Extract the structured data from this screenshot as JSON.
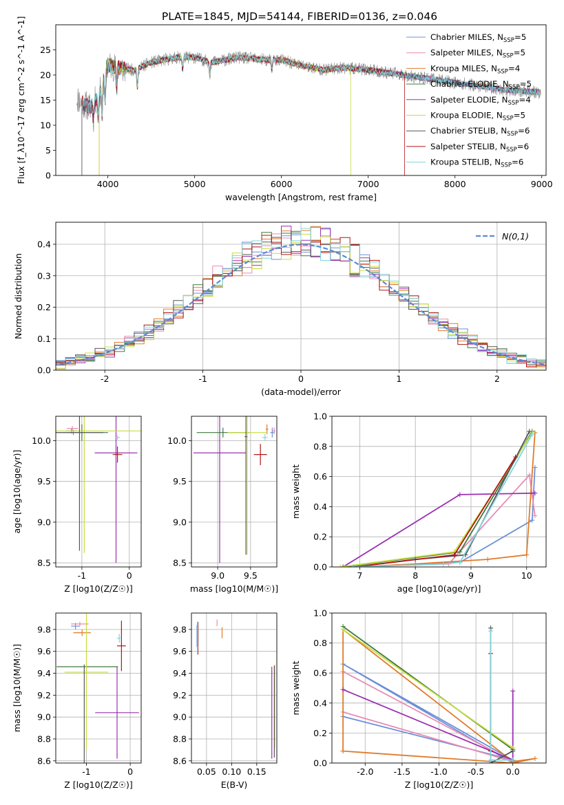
{
  "figure": {
    "title": "PLATE=1845, MJD=54144, FIBERID=0136, z=0.046"
  },
  "models": [
    {
      "name": "Chabrier MILES",
      "nssp": "5",
      "color": "#6b8fd6"
    },
    {
      "name": "Salpeter MILES",
      "nssp": "5",
      "color": "#e98ab4"
    },
    {
      "name": "Kroupa MILES",
      "nssp": "4",
      "color": "#e07b2a"
    },
    {
      "name": "Chabrier ELODIE",
      "nssp": "5",
      "color": "#3c7a3c"
    },
    {
      "name": "Salpeter ELODIE",
      "nssp": "4",
      "color": "#9a2fb0"
    },
    {
      "name": "Kroupa ELODIE",
      "nssp": "5",
      "color": "#c8dc3c"
    },
    {
      "name": "Chabrier STELIB",
      "nssp": "6",
      "color": "#555555"
    },
    {
      "name": "Salpeter STELIB",
      "nssp": "6",
      "color": "#b01515"
    },
    {
      "name": "Kroupa STELIB",
      "nssp": "6",
      "color": "#7fd6dc"
    }
  ],
  "chart_data": [
    {
      "id": "spectrum",
      "type": "line",
      "xlabel": "wavelength [Angstrom, rest frame]",
      "ylabel": "Flux [f_λ10^-17 erg cm^-2 s^-1 A^-1]",
      "xlim": [
        3400,
        9050
      ],
      "ylim": [
        0,
        30
      ],
      "xticks": [
        4000,
        5000,
        6000,
        7000,
        8000,
        9000
      ],
      "yticks": [
        0,
        5,
        10,
        15,
        20,
        25
      ],
      "grid": false,
      "legend": "top-right",
      "data_envelope": {
        "x": [
          3640,
          3700,
          3800,
          3900,
          4000,
          4100,
          4300,
          4500,
          4800,
          5000,
          5200,
          5500,
          5800,
          6000,
          6200,
          6500,
          6700,
          7000,
          7200,
          7400,
          7600,
          7800,
          8000,
          8200,
          8400,
          8600,
          8800,
          8990
        ],
        "y": [
          15.5,
          14.5,
          13.5,
          16,
          22,
          21.5,
          21,
          22.5,
          23.5,
          23.5,
          22.5,
          23.5,
          23,
          23,
          22,
          21,
          21.5,
          21,
          20.5,
          20,
          19.5,
          19,
          18.5,
          18,
          17.5,
          17,
          16.8,
          16.5
        ]
      }
    },
    {
      "id": "residuals",
      "type": "bar",
      "xlabel": "(data-model)/error",
      "ylabel": "Normed distribution",
      "xlim": [
        -2.5,
        2.5
      ],
      "ylim": [
        0,
        0.47
      ],
      "xticks": [
        -2,
        -1,
        0,
        1,
        2
      ],
      "yticks": [
        0.0,
        0.1,
        0.2,
        0.3,
        0.4
      ],
      "grid": true,
      "legend": "top-right",
      "legend_label": "N(0,1)",
      "bin_width": 0.1
    },
    {
      "id": "age-vs-z",
      "type": "scatter",
      "xlabel": "Z [log10(Z/Z☉)]",
      "ylabel": "age [log10(age/yr)]",
      "xlim": [
        -1.55,
        0.25
      ],
      "ylim": [
        8.45,
        10.3
      ],
      "xticks": [
        -1,
        0
      ],
      "yticks": [
        8.5,
        9.0,
        9.5,
        10.0
      ],
      "grid": true,
      "points": [
        {
          "m": 0,
          "x": -1.22,
          "y": 10.12,
          "xe": 0.12,
          "ye": 0.03
        },
        {
          "m": 1,
          "x": -1.2,
          "y": 10.15,
          "xe": 0.12,
          "ye": 0.03
        },
        {
          "m": 2,
          "x": -1.18,
          "y": 10.1,
          "xe": 0.12,
          "ye": 0.03
        },
        {
          "m": 3,
          "x": -1.0,
          "y": 10.1,
          "xe": 0.55,
          "ye": 0.1
        },
        {
          "m": 4,
          "x": -0.28,
          "y": 9.85,
          "xe": 0.45,
          "ye": 1.35
        },
        {
          "m": 5,
          "x": -0.95,
          "y": 10.12,
          "xe": 1.2,
          "ye": 1.5
        },
        {
          "m": 6,
          "x": -1.05,
          "y": 10.1,
          "xe": 0.5,
          "ye": 1.45
        },
        {
          "m": 7,
          "x": -0.25,
          "y": 9.83,
          "xe": 0.1,
          "ye": 0.1
        },
        {
          "m": 8,
          "x": -0.25,
          "y": 10.04,
          "xe": 0.05,
          "ye": 0.03
        }
      ]
    },
    {
      "id": "age-vs-mass",
      "type": "scatter",
      "xlabel": "mass [log10(M/M☉)]",
      "ylabel": "",
      "xlim": [
        8.6,
        9.9
      ],
      "ylim": [
        8.45,
        10.3
      ],
      "xticks": [
        9.0,
        9.5
      ],
      "yticks": [
        8.5,
        9.0,
        9.5,
        10.0
      ],
      "grid": true,
      "points": [
        {
          "m": 0,
          "x": 9.83,
          "y": 10.1,
          "xe": 0.03,
          "ye": 0.06
        },
        {
          "m": 1,
          "x": 9.86,
          "y": 10.12,
          "xe": 0.02,
          "ye": 0.04
        },
        {
          "m": 2,
          "x": 9.75,
          "y": 10.14,
          "xe": 0.02,
          "ye": 0.06
        },
        {
          "m": 3,
          "x": 9.08,
          "y": 10.1,
          "xe": 0.4,
          "ye": 0.06
        },
        {
          "m": 4,
          "x": 9.03,
          "y": 9.85,
          "xe": 0.4,
          "ye": 1.35
        },
        {
          "m": 5,
          "x": 9.45,
          "y": 10.1,
          "xe": 0.3,
          "ye": 1.5
        },
        {
          "m": 6,
          "x": 9.43,
          "y": 10.05,
          "xe": 0.02,
          "ye": 1.45
        },
        {
          "m": 7,
          "x": 9.65,
          "y": 9.83,
          "xe": 0.1,
          "ye": 0.13
        },
        {
          "m": 8,
          "x": 9.72,
          "y": 10.04,
          "xe": 0.04,
          "ye": 0.04
        }
      ]
    },
    {
      "id": "mass-weight-vs-age",
      "type": "line",
      "xlabel": "age [log10(age/yr)]",
      "ylabel": "mass weight",
      "xlim": [
        6.5,
        10.35
      ],
      "ylim": [
        0,
        1.0
      ],
      "xticks": [
        7,
        8,
        9,
        10
      ],
      "yticks": [
        0.0,
        0.2,
        0.4,
        0.6,
        0.8,
        1.0
      ],
      "grid": true,
      "series": [
        {
          "m": 0,
          "x": [
            6.9,
            8.8,
            10.1,
            10.15
          ],
          "y": [
            0.0,
            0.03,
            0.31,
            0.66
          ]
        },
        {
          "m": 1,
          "x": [
            6.9,
            8.6,
            10.05,
            10.15
          ],
          "y": [
            0.0,
            0.02,
            0.61,
            0.34
          ]
        },
        {
          "m": 2,
          "x": [
            6.9,
            8.0,
            9.3,
            10.0,
            10.15
          ],
          "y": [
            0.0,
            0.02,
            0.05,
            0.08,
            0.89
          ]
        },
        {
          "m": 3,
          "x": [
            6.7,
            8.8,
            10.1
          ],
          "y": [
            0.0,
            0.1,
            0.9
          ]
        },
        {
          "m": 4,
          "x": [
            6.7,
            8.8,
            10.15
          ],
          "y": [
            0.0,
            0.48,
            0.49
          ]
        },
        {
          "m": 5,
          "x": [
            6.65,
            8.7,
            10.1
          ],
          "y": [
            0.0,
            0.1,
            0.89
          ]
        },
        {
          "m": 6,
          "x": [
            6.9,
            8.0,
            8.9,
            10.05
          ],
          "y": [
            0.0,
            0.05,
            0.08,
            0.9
          ]
        },
        {
          "m": 7,
          "x": [
            6.9,
            8.7,
            9.8
          ],
          "y": [
            0.0,
            0.08,
            0.73
          ]
        },
        {
          "m": 8,
          "x": [
            6.9,
            8.5,
            8.8,
            10.1
          ],
          "y": [
            0.0,
            0.02,
            0.03,
            0.88
          ]
        }
      ]
    },
    {
      "id": "mass-vs-z",
      "type": "scatter",
      "xlabel": "Z [log10(Z/Z☉)]",
      "ylabel": "mass [log10(M/M☉)]",
      "xlim": [
        -1.7,
        0.25
      ],
      "ylim": [
        8.58,
        9.95
      ],
      "xticks": [
        -1,
        0
      ],
      "yticks": [
        8.6,
        8.8,
        9.0,
        9.2,
        9.4,
        9.6,
        9.8
      ],
      "grid": true,
      "points": [
        {
          "m": 0,
          "x": -1.25,
          "y": 9.83,
          "xe": 0.1,
          "ye": 0.03
        },
        {
          "m": 1,
          "x": -1.15,
          "y": 9.85,
          "xe": 0.2,
          "ye": 0.02
        },
        {
          "m": 2,
          "x": -1.1,
          "y": 9.77,
          "xe": 0.2,
          "ye": 0.03
        },
        {
          "m": 3,
          "x": -0.98,
          "y": 9.46,
          "xe": 0.7,
          "ye": 0.0
        },
        {
          "m": 4,
          "x": -0.3,
          "y": 9.04,
          "xe": 0.5,
          "ye": 0.42
        },
        {
          "m": 5,
          "x": -1.0,
          "y": 9.41,
          "xe": 0.5,
          "ye": 0.7
        },
        {
          "m": 6,
          "x": -1.05,
          "y": 9.0,
          "xe": 0.0,
          "ye": 0.48
        },
        {
          "m": 7,
          "x": -0.2,
          "y": 9.65,
          "xe": 0.1,
          "ye": 0.23
        },
        {
          "m": 8,
          "x": -0.25,
          "y": 9.72,
          "xe": 0.05,
          "ye": 0.04
        }
      ]
    },
    {
      "id": "mass-vs-ebv",
      "type": "scatter",
      "xlabel": "E(B-V)",
      "ylabel": "",
      "xlim": [
        0.02,
        0.19
      ],
      "ylim": [
        8.58,
        9.95
      ],
      "xticks": [
        0.05,
        0.1,
        0.15
      ],
      "yticks": [
        8.6,
        8.8,
        9.0,
        9.2,
        9.4,
        9.6,
        9.8
      ],
      "grid": true,
      "points": [
        {
          "m": 0,
          "x": 0.031,
          "y": 9.74,
          "xe": 0.0,
          "ye": 0.1
        },
        {
          "m": 1,
          "x": 0.071,
          "y": 9.86,
          "xe": 0.0,
          "ye": 0.03
        },
        {
          "m": 2,
          "x": 0.081,
          "y": 9.77,
          "xe": 0.0,
          "ye": 0.05
        },
        {
          "m": 3,
          "x": 0.033,
          "y": 9.75,
          "xe": 0.0,
          "ye": 0.1
        },
        {
          "m": 4,
          "x": 0.18,
          "y": 9.04,
          "xe": 0.0,
          "ye": 0.42
        },
        {
          "m": 5,
          "x": 0.186,
          "y": 9.1,
          "xe": 0.0,
          "ye": 0.38
        },
        {
          "m": 6,
          "x": 0.185,
          "y": 9.05,
          "xe": 0.0,
          "ye": 0.42
        },
        {
          "m": 7,
          "x": 0.033,
          "y": 9.72,
          "xe": 0.0,
          "ye": 0.15
        },
        {
          "m": 8,
          "x": 0.032,
          "y": 9.72,
          "xe": 0.0,
          "ye": 0.15
        }
      ]
    },
    {
      "id": "mass-weight-vs-z",
      "type": "line",
      "xlabel": "Z [log10(Z/Z☉)]",
      "ylabel": "mass weight",
      "xlim": [
        -2.45,
        0.45
      ],
      "ylim": [
        0,
        1.0
      ],
      "xticks": [
        -2.0,
        -1.5,
        -1.0,
        -0.5,
        0.0
      ],
      "yticks": [
        0.0,
        0.2,
        0.4,
        0.6,
        0.8,
        1.0
      ],
      "grid": true,
      "series": [
        {
          "m": 0,
          "x": [
            -2.3,
            0.0,
            -2.3,
            0.0
          ],
          "y": [
            0.31,
            0.02,
            0.66,
            0.0
          ]
        },
        {
          "m": 1,
          "x": [
            -2.3,
            0.0,
            -2.3
          ],
          "y": [
            0.34,
            0.01,
            0.61
          ]
        },
        {
          "m": 2,
          "x": [
            -2.3,
            0.0,
            0.3,
            0.0,
            -2.3,
            -2.3
          ],
          "y": [
            0.08,
            0.0,
            0.03,
            0.01,
            0.89,
            0.08
          ]
        },
        {
          "m": 3,
          "x": [
            -2.3,
            0.0
          ],
          "y": [
            0.91,
            0.09
          ]
        },
        {
          "m": 4,
          "x": [
            -2.3,
            0.0,
            0.0
          ],
          "y": [
            0.49,
            0.02,
            0.48
          ]
        },
        {
          "m": 5,
          "x": [
            -2.3,
            0.0
          ],
          "y": [
            0.89,
            0.1
          ]
        },
        {
          "m": 6,
          "x": [
            -0.3,
            -0.3,
            0.0
          ],
          "y": [
            0.9,
            0.0,
            0.08
          ]
        },
        {
          "m": 7,
          "x": [
            -0.3,
            -0.3
          ],
          "y": [
            0.73,
            0.08
          ]
        },
        {
          "m": 8,
          "x": [
            -0.3,
            -0.3,
            0.0
          ],
          "y": [
            0.88,
            0.02,
            0.02
          ]
        }
      ]
    }
  ]
}
